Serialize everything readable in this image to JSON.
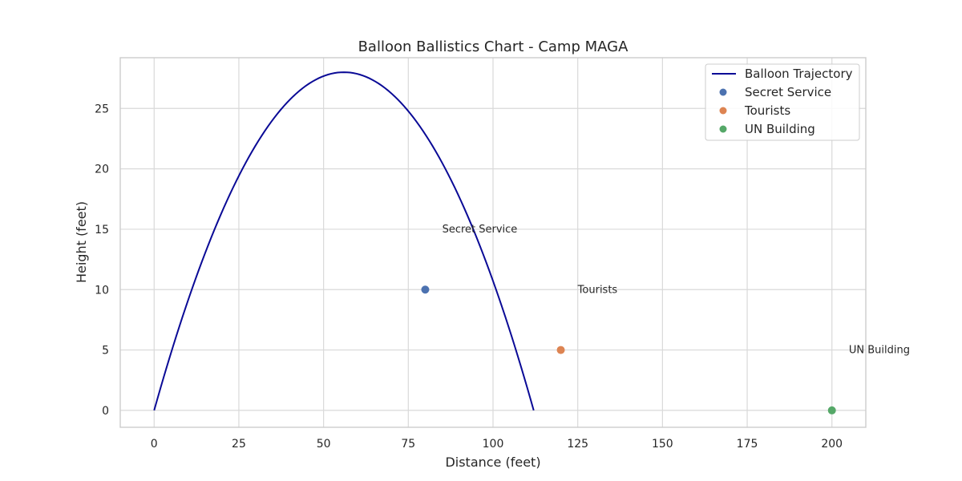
{
  "chart_data": {
    "type": "line",
    "title": "Balloon Ballistics Chart - Camp MAGA",
    "xlabel": "Distance (feet)",
    "ylabel": "Height (feet)",
    "xlim": [
      -10,
      210
    ],
    "ylim": [
      -1.4,
      29.2
    ],
    "xticks": [
      0,
      25,
      50,
      75,
      100,
      125,
      150,
      175,
      200
    ],
    "yticks": [
      0,
      5,
      10,
      15,
      20,
      25
    ],
    "grid": true,
    "legend_position": "top-right",
    "trajectory": {
      "name": "Balloon Trajectory",
      "color": "#0a0a96",
      "range": [
        0,
        112
      ],
      "peak": [
        56,
        28
      ]
    },
    "points": [
      {
        "name": "Secret Service",
        "x": 80,
        "y": 10,
        "color": "#4c72b0",
        "label": "Secret Service",
        "label_x": 85,
        "label_y": 15
      },
      {
        "name": "Tourists",
        "x": 120,
        "y": 5,
        "color": "#dd8452",
        "label": "Tourists",
        "label_x": 125,
        "label_y": 10
      },
      {
        "name": "UN Building",
        "x": 200,
        "y": 0,
        "color": "#55a868",
        "label": "UN Building",
        "label_x": 205,
        "label_y": 5
      }
    ]
  }
}
